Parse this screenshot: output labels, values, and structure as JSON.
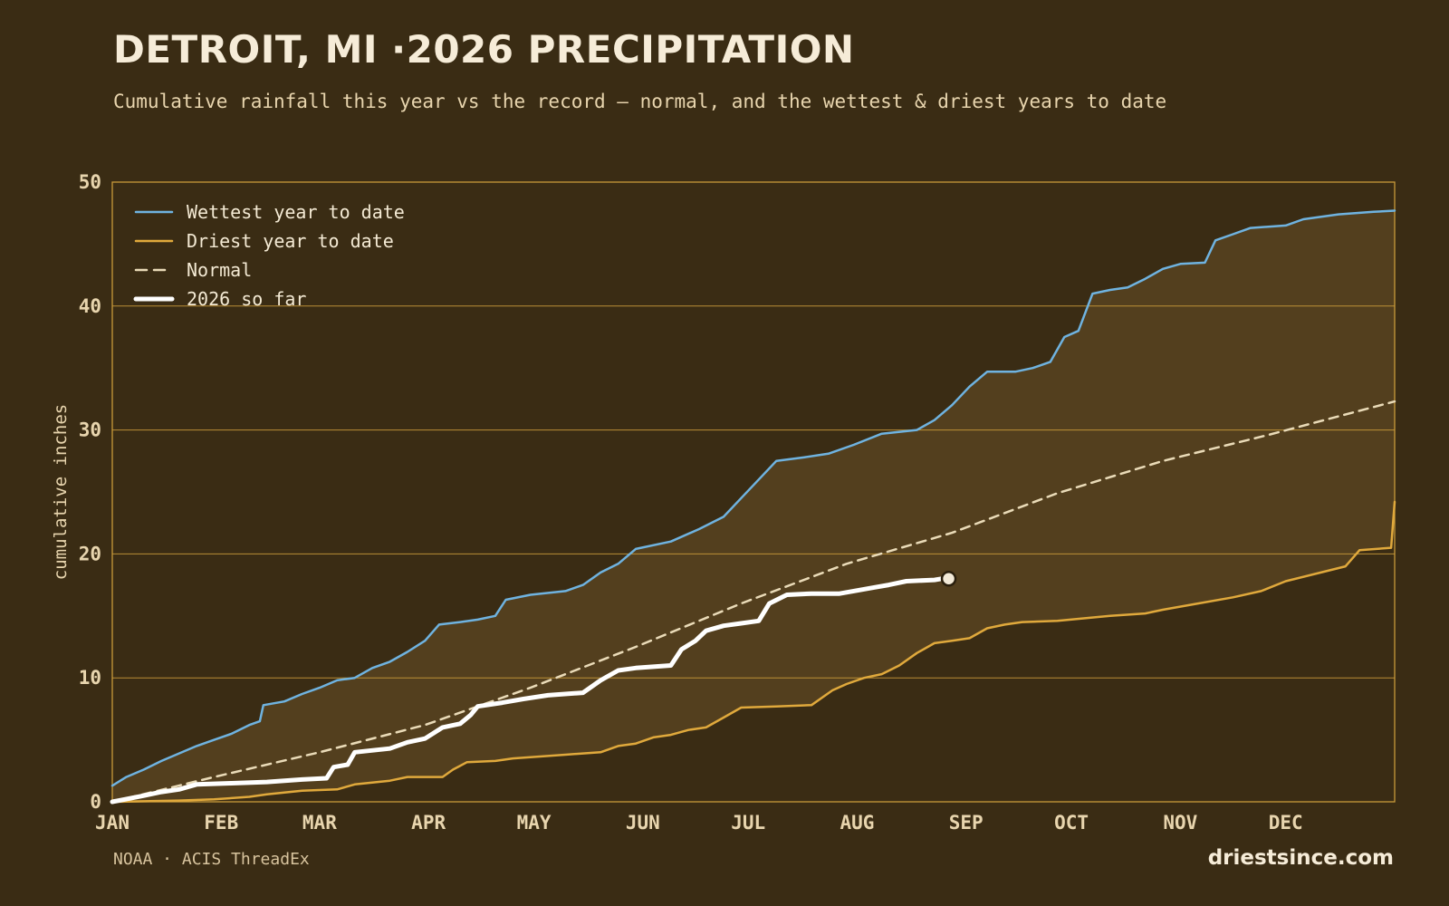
{
  "header": {
    "title": "DETROIT, MI ·2026 PRECIPITATION",
    "subtitle": "Cumulative rainfall this year vs the record — normal, and the wettest & driest years to date"
  },
  "footer": {
    "source": "NOAA · ACIS ThreadEx",
    "site": "driestsince.com"
  },
  "colors": {
    "background": "#3a2c14",
    "band_fill": "#533f1e",
    "frame": "#c99a3a",
    "wettest": "#6fb3e0",
    "driest": "#e0a93c",
    "normal": "#eadbb8",
    "current": "#ffffff",
    "tick_text": "#e8d5ae"
  },
  "chart_data": {
    "type": "line",
    "title": "DETROIT, MI ·2026 PRECIPITATION",
    "xlabel": "",
    "ylabel": "cumulative inches",
    "x_unit": "day of year",
    "xlim": [
      1,
      366
    ],
    "ylim": [
      0,
      50
    ],
    "yticks": [
      0,
      10,
      20,
      30,
      40,
      50
    ],
    "xticks": [
      {
        "label": "JAN",
        "day": 1
      },
      {
        "label": "FEB",
        "day": 32
      },
      {
        "label": "MAR",
        "day": 60
      },
      {
        "label": "APR",
        "day": 91
      },
      {
        "label": "MAY",
        "day": 121
      },
      {
        "label": "JUN",
        "day": 152
      },
      {
        "label": "JUL",
        "day": 182
      },
      {
        "label": "AUG",
        "day": 213
      },
      {
        "label": "SEP",
        "day": 244
      },
      {
        "label": "OCT",
        "day": 274
      },
      {
        "label": "NOV",
        "day": 305
      },
      {
        "label": "DEC",
        "day": 335
      }
    ],
    "grid": "horizontal",
    "legend_position": "top-left",
    "shaded_band_between": [
      "Driest year to date",
      "Wettest year to date"
    ],
    "series": [
      {
        "name": "Wettest year to date",
        "color": "#6fb3e0",
        "style": "solid",
        "points": [
          [
            1,
            1.3
          ],
          [
            5,
            2.0
          ],
          [
            10,
            2.6
          ],
          [
            15,
            3.3
          ],
          [
            20,
            3.9
          ],
          [
            25,
            4.5
          ],
          [
            30,
            5.0
          ],
          [
            35,
            5.5
          ],
          [
            40,
            6.2
          ],
          [
            43,
            6.5
          ],
          [
            44,
            7.8
          ],
          [
            50,
            8.1
          ],
          [
            55,
            8.7
          ],
          [
            60,
            9.2
          ],
          [
            65,
            9.8
          ],
          [
            70,
            10.0
          ],
          [
            75,
            10.8
          ],
          [
            80,
            11.3
          ],
          [
            85,
            12.1
          ],
          [
            90,
            13.0
          ],
          [
            94,
            14.3
          ],
          [
            100,
            14.5
          ],
          [
            105,
            14.7
          ],
          [
            110,
            15.0
          ],
          [
            113,
            16.3
          ],
          [
            120,
            16.7
          ],
          [
            130,
            17.0
          ],
          [
            135,
            17.5
          ],
          [
            140,
            18.5
          ],
          [
            145,
            19.2
          ],
          [
            150,
            20.4
          ],
          [
            160,
            21.0
          ],
          [
            168,
            22.0
          ],
          [
            175,
            23.0
          ],
          [
            180,
            24.5
          ],
          [
            185,
            26.0
          ],
          [
            190,
            27.5
          ],
          [
            198,
            27.8
          ],
          [
            205,
            28.1
          ],
          [
            212,
            28.8
          ],
          [
            220,
            29.7
          ],
          [
            230,
            30.0
          ],
          [
            235,
            30.8
          ],
          [
            240,
            32.0
          ],
          [
            245,
            33.5
          ],
          [
            250,
            34.7
          ],
          [
            258,
            34.7
          ],
          [
            263,
            35.0
          ],
          [
            268,
            35.5
          ],
          [
            272,
            37.5
          ],
          [
            276,
            38.0
          ],
          [
            280,
            41.0
          ],
          [
            285,
            41.3
          ],
          [
            290,
            41.5
          ],
          [
            295,
            42.2
          ],
          [
            300,
            43.0
          ],
          [
            305,
            43.4
          ],
          [
            312,
            43.5
          ],
          [
            315,
            45.3
          ],
          [
            320,
            45.8
          ],
          [
            325,
            46.3
          ],
          [
            335,
            46.5
          ],
          [
            340,
            47.0
          ],
          [
            350,
            47.4
          ],
          [
            360,
            47.6
          ],
          [
            366,
            47.7
          ]
        ]
      },
      {
        "name": "Driest year to date",
        "color": "#e0a93c",
        "style": "solid",
        "points": [
          [
            1,
            0
          ],
          [
            20,
            0.1
          ],
          [
            30,
            0.2
          ],
          [
            40,
            0.4
          ],
          [
            45,
            0.6
          ],
          [
            55,
            0.9
          ],
          [
            65,
            1.0
          ],
          [
            70,
            1.4
          ],
          [
            80,
            1.7
          ],
          [
            85,
            2.0
          ],
          [
            95,
            2.0
          ],
          [
            98,
            2.6
          ],
          [
            102,
            3.2
          ],
          [
            110,
            3.3
          ],
          [
            115,
            3.5
          ],
          [
            120,
            3.6
          ],
          [
            125,
            3.7
          ],
          [
            130,
            3.8
          ],
          [
            135,
            3.9
          ],
          [
            140,
            4.0
          ],
          [
            145,
            4.5
          ],
          [
            150,
            4.7
          ],
          [
            155,
            5.2
          ],
          [
            160,
            5.4
          ],
          [
            165,
            5.8
          ],
          [
            170,
            6.0
          ],
          [
            175,
            6.8
          ],
          [
            180,
            7.6
          ],
          [
            190,
            7.7
          ],
          [
            200,
            7.8
          ],
          [
            206,
            9.0
          ],
          [
            210,
            9.5
          ],
          [
            215,
            10.0
          ],
          [
            220,
            10.3
          ],
          [
            225,
            11.0
          ],
          [
            230,
            12.0
          ],
          [
            235,
            12.8
          ],
          [
            240,
            13.0
          ],
          [
            245,
            13.2
          ],
          [
            250,
            14.0
          ],
          [
            255,
            14.3
          ],
          [
            260,
            14.5
          ],
          [
            270,
            14.6
          ],
          [
            285,
            15.0
          ],
          [
            295,
            15.2
          ],
          [
            300,
            15.5
          ],
          [
            310,
            16.0
          ],
          [
            320,
            16.5
          ],
          [
            328,
            17.0
          ],
          [
            335,
            17.8
          ],
          [
            345,
            18.5
          ],
          [
            352,
            19.0
          ],
          [
            356,
            20.3
          ],
          [
            365,
            20.5
          ],
          [
            366,
            24.2
          ]
        ]
      },
      {
        "name": "Normal",
        "color": "#eadbb8",
        "style": "dashed",
        "points": [
          [
            1,
            0
          ],
          [
            30,
            2.0
          ],
          [
            60,
            4.0
          ],
          [
            90,
            6.2
          ],
          [
            120,
            9.2
          ],
          [
            150,
            12.5
          ],
          [
            180,
            16.0
          ],
          [
            210,
            19.2
          ],
          [
            240,
            21.7
          ],
          [
            270,
            24.9
          ],
          [
            300,
            27.5
          ],
          [
            330,
            29.6
          ],
          [
            366,
            32.3
          ]
        ]
      },
      {
        "name": "2026 so far",
        "color": "#ffffff",
        "style": "bold",
        "points": [
          [
            1,
            0
          ],
          [
            10,
            0.5
          ],
          [
            15,
            0.8
          ],
          [
            20,
            1.0
          ],
          [
            25,
            1.4
          ],
          [
            35,
            1.5
          ],
          [
            45,
            1.6
          ],
          [
            55,
            1.8
          ],
          [
            62,
            1.9
          ],
          [
            64,
            2.8
          ],
          [
            68,
            3.0
          ],
          [
            70,
            4.0
          ],
          [
            80,
            4.3
          ],
          [
            85,
            4.8
          ],
          [
            90,
            5.1
          ],
          [
            95,
            6.0
          ],
          [
            100,
            6.3
          ],
          [
            103,
            7.0
          ],
          [
            105,
            7.7
          ],
          [
            112,
            8.0
          ],
          [
            118,
            8.3
          ],
          [
            125,
            8.6
          ],
          [
            135,
            8.8
          ],
          [
            140,
            9.8
          ],
          [
            145,
            10.6
          ],
          [
            150,
            10.8
          ],
          [
            160,
            11.0
          ],
          [
            163,
            12.3
          ],
          [
            167,
            13.0
          ],
          [
            170,
            13.8
          ],
          [
            175,
            14.2
          ],
          [
            180,
            14.4
          ],
          [
            185,
            14.6
          ],
          [
            188,
            16.0
          ],
          [
            193,
            16.7
          ],
          [
            200,
            16.8
          ],
          [
            208,
            16.8
          ],
          [
            212,
            17.0
          ],
          [
            218,
            17.3
          ],
          [
            222,
            17.5
          ],
          [
            227,
            17.8
          ],
          [
            235,
            17.9
          ],
          [
            237,
            18.0
          ]
        ]
      }
    ],
    "end_marker": {
      "series": "2026 so far",
      "x": 237,
      "y": 18.0
    }
  }
}
